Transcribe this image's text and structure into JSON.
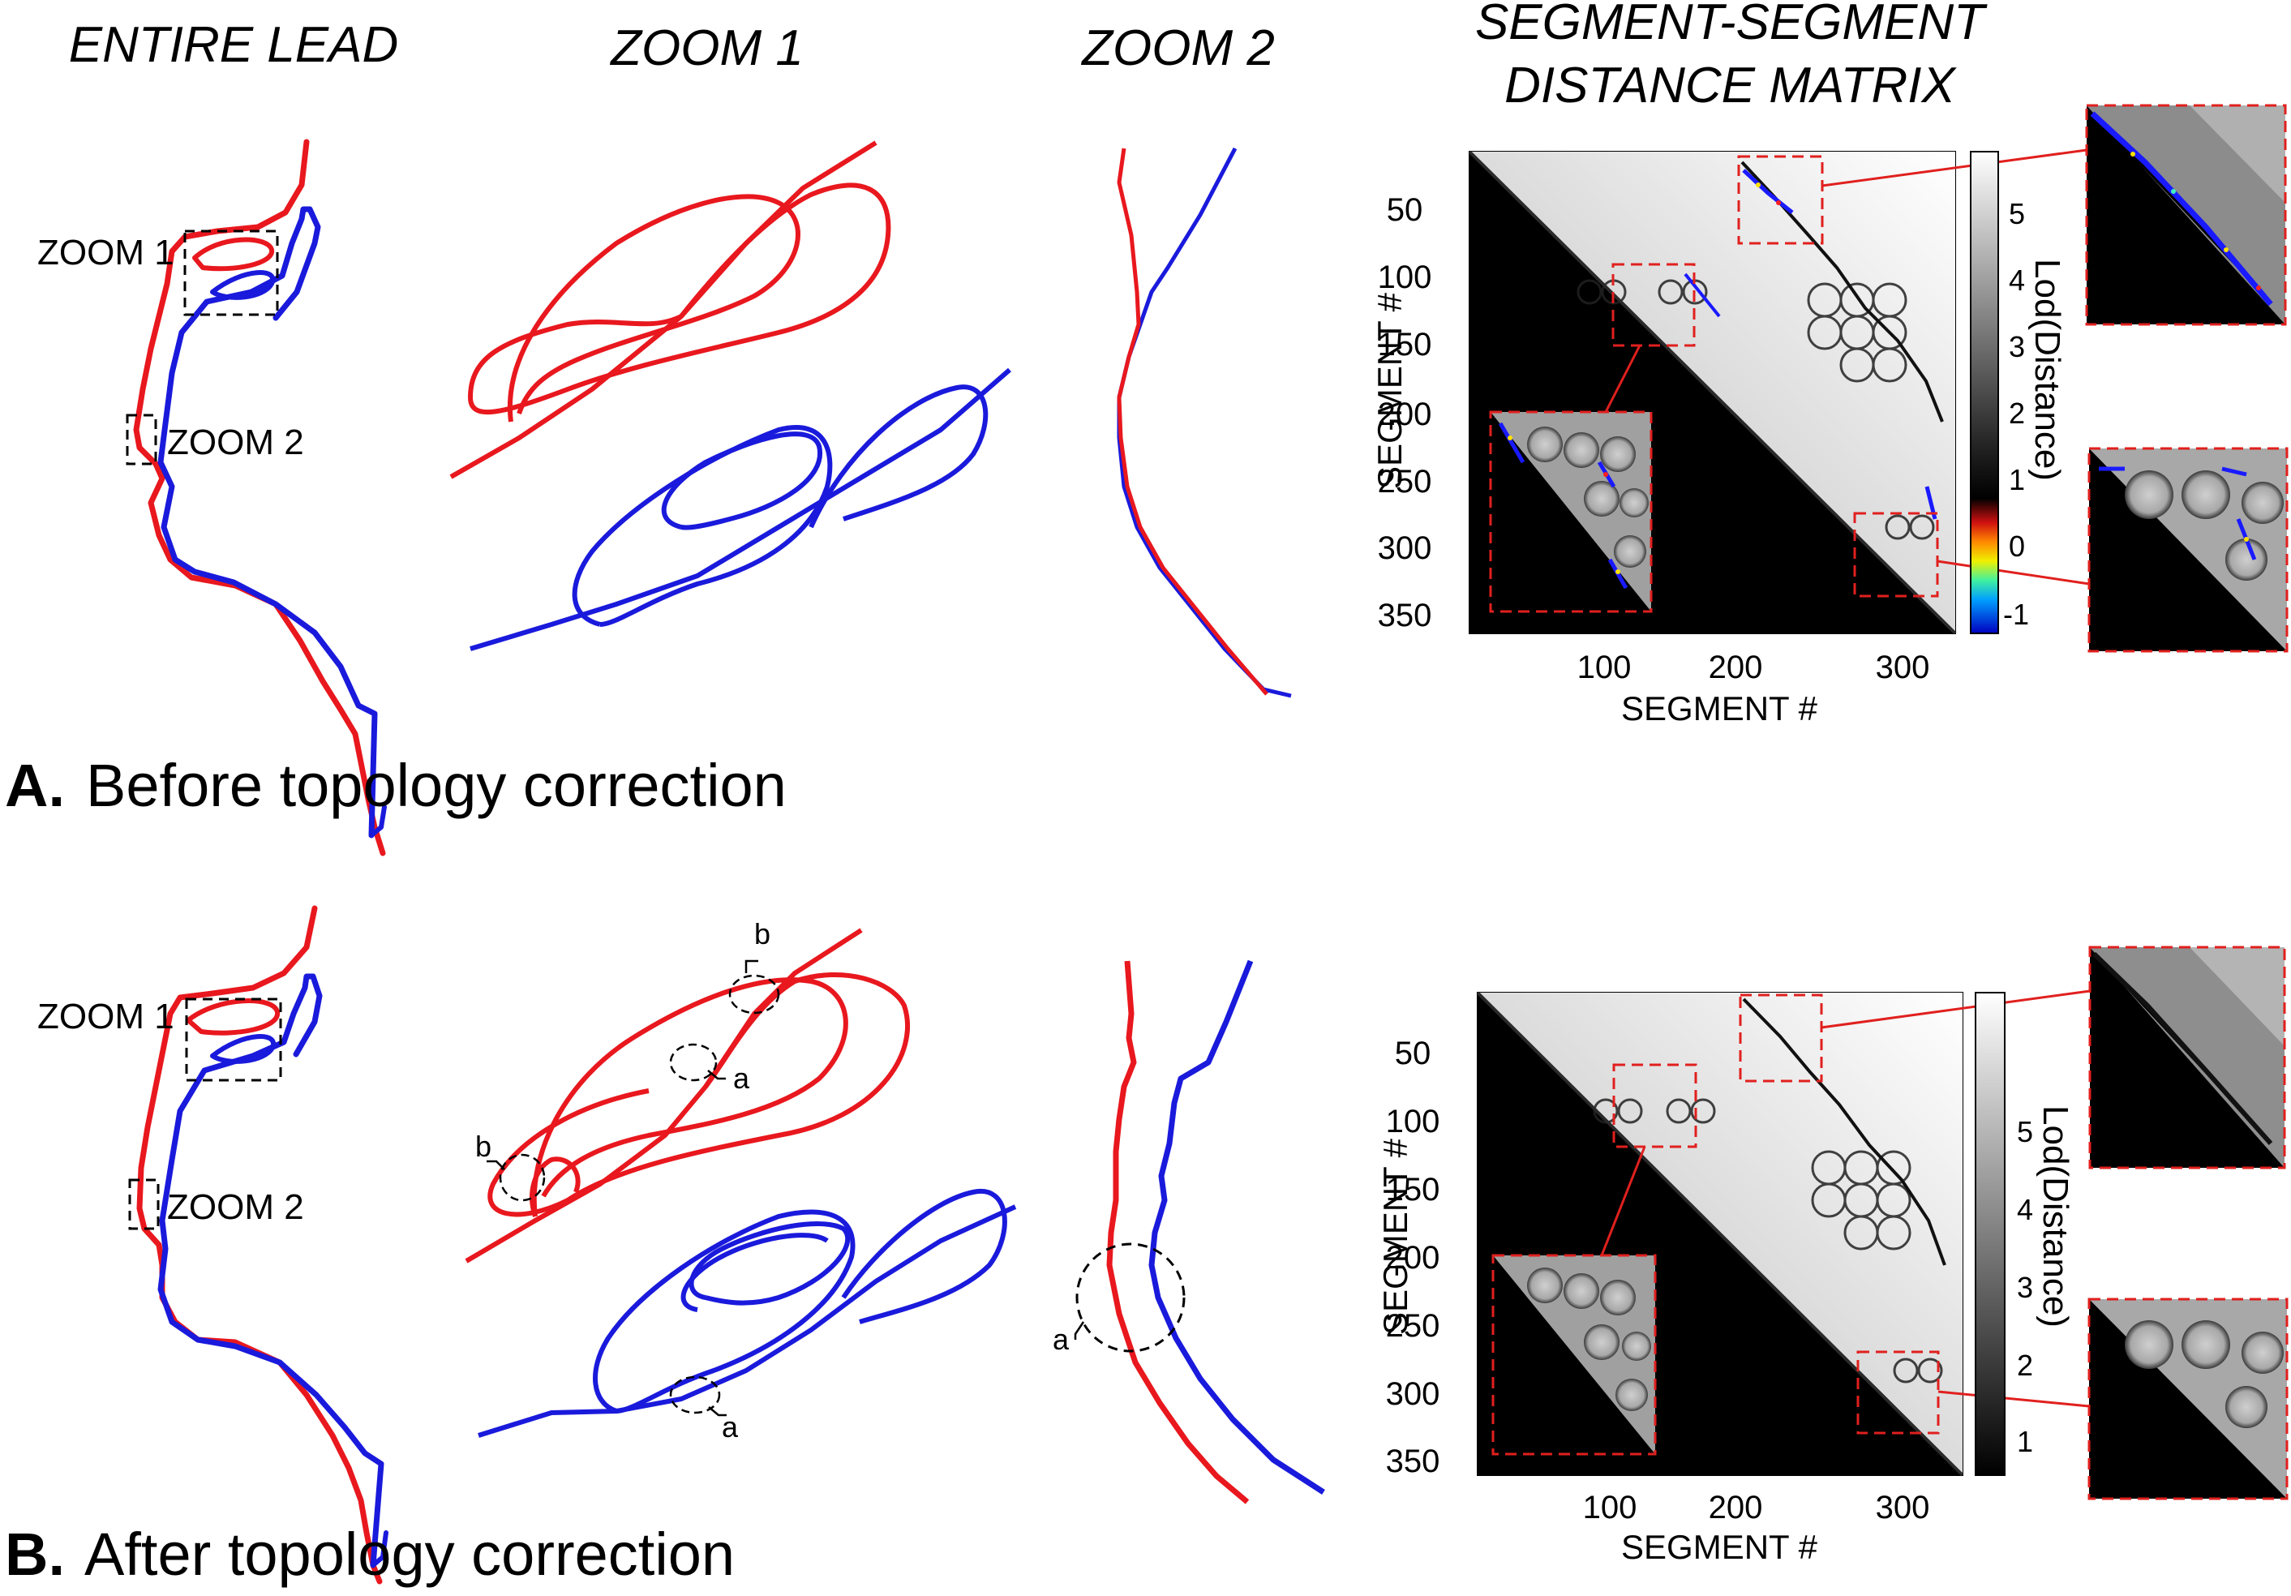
{
  "header": {
    "col1": "ENTIRE LEAD",
    "col2": "ZOOM 1",
    "col3": "ZOOM 2",
    "col4_line1": "SEGMENT-SEGMENT",
    "col4_line2": "DISTANCE MATRIX"
  },
  "panels": [
    {
      "letter": "A.",
      "caption": "Before topology correction",
      "zoom1_label": "ZOOM 1",
      "zoom2_label": "ZOOM 2",
      "annotations": [],
      "matrix": {
        "ylabel": "SEGMENT #",
        "xlabel": "SEGMENT #",
        "yticks": [
          "50",
          "100",
          "150",
          "200",
          "250",
          "300",
          "350"
        ],
        "xticks": [
          "100",
          "200",
          "300"
        ],
        "colorbar_label": "Lod(Distance)",
        "colorbar_ticks": [
          "5",
          "4",
          "3",
          "2",
          "1",
          "0",
          "-1"
        ]
      }
    },
    {
      "letter": "B.",
      "caption": "After topology correction",
      "zoom1_label": "ZOOM 1",
      "zoom2_label": "ZOOM 2",
      "annotations": [
        "b",
        "a",
        "b",
        "a",
        "a"
      ],
      "matrix": {
        "ylabel": "SEGMENT #",
        "xlabel": "SEGMENT #",
        "yticks": [
          "50",
          "100",
          "150",
          "200",
          "250",
          "300",
          "350"
        ],
        "xticks": [
          "100",
          "200",
          "300"
        ],
        "colorbar_label": "Lod(Distance)",
        "colorbar_ticks": [
          "5",
          "4",
          "3",
          "2",
          "1"
        ]
      }
    }
  ],
  "colors": {
    "red_lead": "#e8181e",
    "blue_lead": "#1a1adc",
    "box_red": "#e0201e"
  }
}
